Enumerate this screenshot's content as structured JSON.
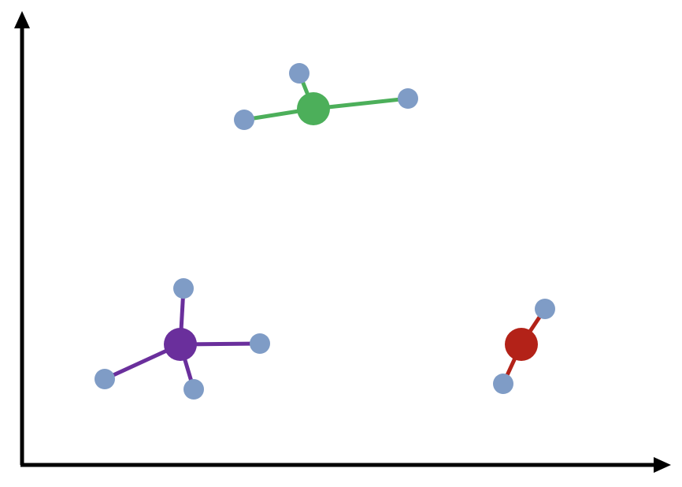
{
  "colors": {
    "axis": "#000000",
    "satellite": "#7f9cc6",
    "background": "#ffffff"
  },
  "clusters": [
    {
      "id": "green",
      "center_color": "#4caf5a",
      "bond_color": "#4caf5a",
      "satellites": 3
    },
    {
      "id": "purple",
      "center_color": "#6a2f9c",
      "bond_color": "#6a2f9c",
      "satellites": 4
    },
    {
      "id": "red",
      "center_color": "#b32218",
      "bond_color": "#b32218",
      "satellites": 2
    }
  ]
}
